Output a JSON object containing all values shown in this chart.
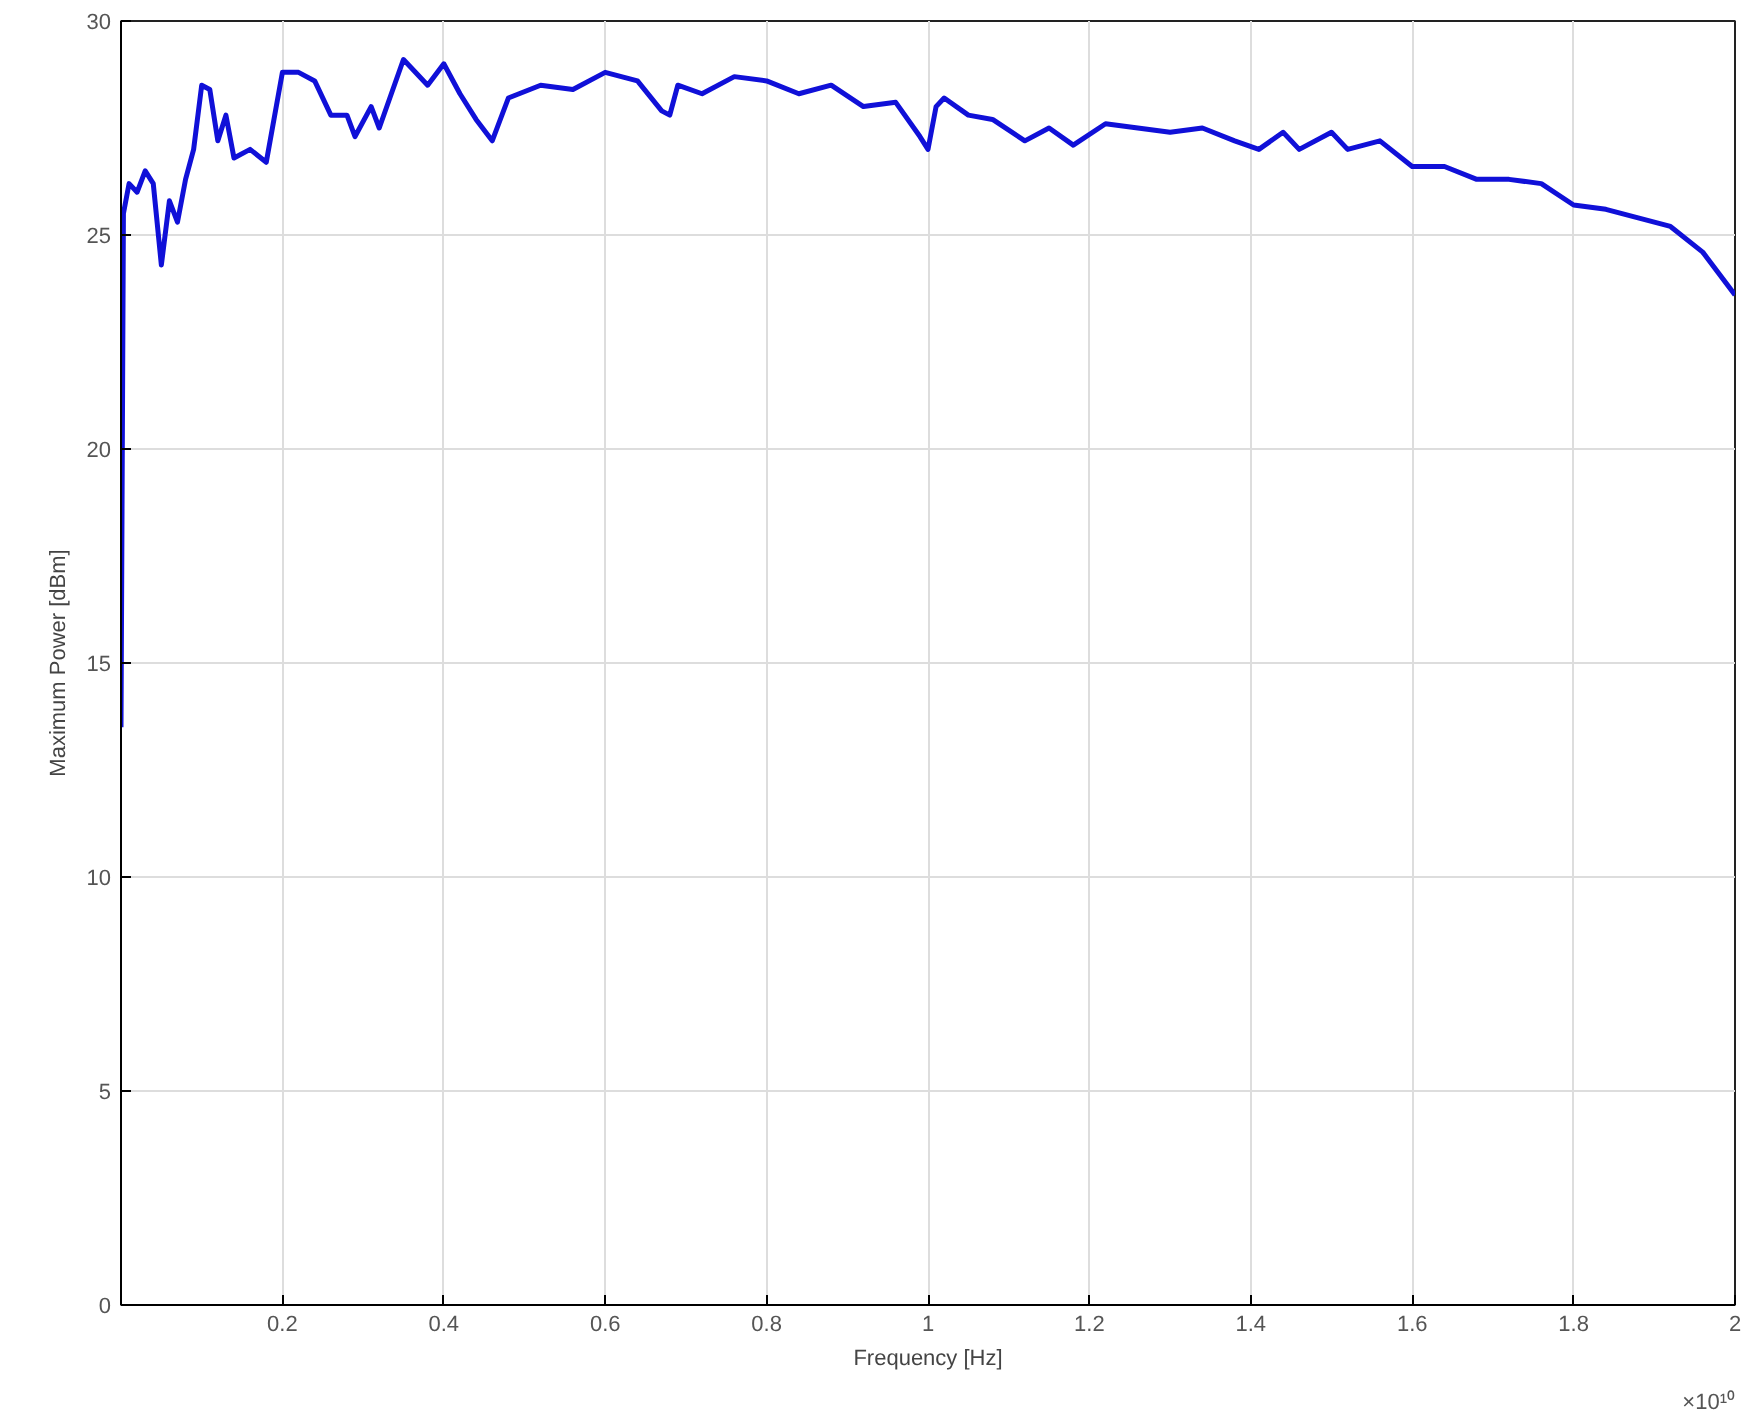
{
  "chart_data": {
    "type": "line",
    "xlabel": "Frequency [Hz]",
    "ylabel": "Maximum Power [dBm]",
    "annotations": [
      "×10¹⁰"
    ],
    "series": [
      {
        "color": "#1010d8",
        "x": [
          0.0,
          0.003,
          0.01,
          0.02,
          0.03,
          0.04,
          0.05,
          0.06,
          0.07,
          0.08,
          0.09,
          0.1,
          0.11,
          0.12,
          0.13,
          0.14,
          0.16,
          0.18,
          0.2,
          0.22,
          0.24,
          0.26,
          0.28,
          0.29,
          0.31,
          0.32,
          0.35,
          0.38,
          0.4,
          0.42,
          0.44,
          0.46,
          0.48,
          0.52,
          0.56,
          0.6,
          0.64,
          0.67,
          0.68,
          0.69,
          0.72,
          0.76,
          0.8,
          0.84,
          0.88,
          0.92,
          0.96,
          0.99,
          1.0,
          1.01,
          1.02,
          1.05,
          1.08,
          1.12,
          1.15,
          1.18,
          1.22,
          1.26,
          1.3,
          1.34,
          1.38,
          1.41,
          1.44,
          1.46,
          1.5,
          1.52,
          1.56,
          1.6,
          1.64,
          1.68,
          1.72,
          1.76,
          1.8,
          1.84,
          1.88,
          1.92,
          1.96,
          2.0
        ],
        "values": [
          13.5,
          25.5,
          26.2,
          26.0,
          26.5,
          26.2,
          24.3,
          25.8,
          25.3,
          26.3,
          27.0,
          28.5,
          28.4,
          27.2,
          27.8,
          26.8,
          27.0,
          26.7,
          28.8,
          28.8,
          28.6,
          27.8,
          27.8,
          27.3,
          28.0,
          27.5,
          29.1,
          28.5,
          29.0,
          28.3,
          27.7,
          27.2,
          28.2,
          28.5,
          28.4,
          28.8,
          28.6,
          27.9,
          27.8,
          28.5,
          28.3,
          28.7,
          28.6,
          28.3,
          28.5,
          28.0,
          28.1,
          27.3,
          27.0,
          28.0,
          28.2,
          27.8,
          27.7,
          27.2,
          27.5,
          27.1,
          27.6,
          27.5,
          27.4,
          27.5,
          27.2,
          27.0,
          27.4,
          27.0,
          27.4,
          27.0,
          27.2,
          26.6,
          26.6,
          26.3,
          26.3,
          26.2,
          25.7,
          25.6,
          25.4,
          25.2,
          24.6,
          23.6
        ]
      }
    ],
    "xlim": [
      0,
      2
    ],
    "xticks": [
      0.2,
      0.4,
      0.6,
      0.8,
      1,
      1.2,
      1.4,
      1.6,
      1.8,
      2
    ],
    "ylim": [
      0,
      30
    ],
    "yticks": [
      0,
      5,
      10,
      15,
      20,
      25,
      30
    ],
    "grid": true,
    "marker": "none",
    "line_style": "solid"
  }
}
